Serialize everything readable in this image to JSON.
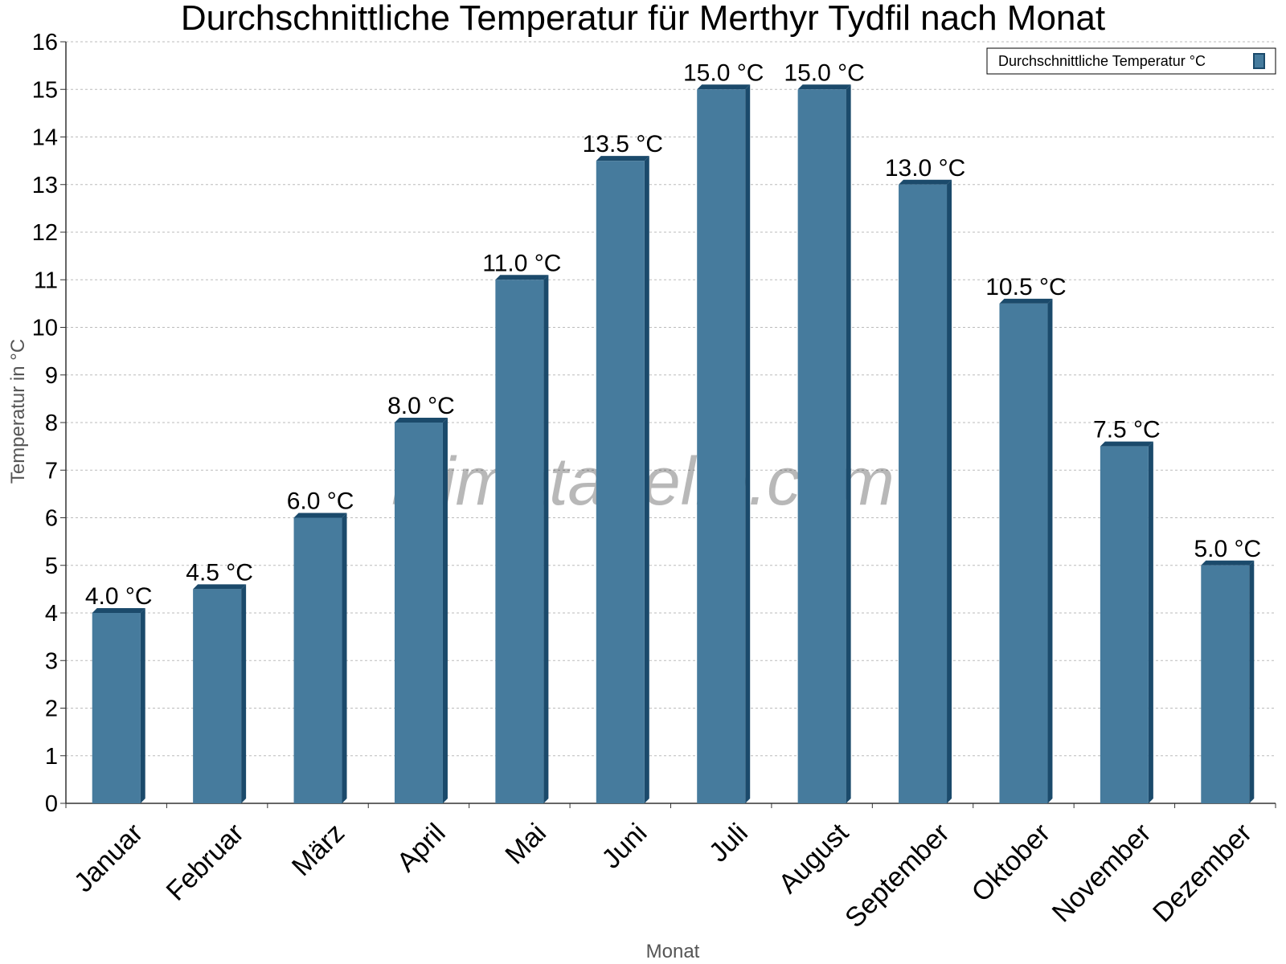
{
  "chart_data": {
    "type": "bar",
    "title": "Durchschnittliche Temperatur für Merthyr Tydfil nach Monat",
    "xlabel": "Monat",
    "ylabel": "Temperatur in °C",
    "ylim": [
      0,
      16
    ],
    "yticks": [
      0,
      1,
      2,
      3,
      4,
      5,
      6,
      7,
      8,
      9,
      10,
      11,
      12,
      13,
      14,
      15,
      16
    ],
    "grid": true,
    "legend_position": "top-right",
    "categories": [
      "Januar",
      "Februar",
      "März",
      "April",
      "Mai",
      "Juni",
      "Juli",
      "August",
      "September",
      "Oktober",
      "November",
      "Dezember"
    ],
    "series": [
      {
        "name": "Durchschnittliche Temperatur °C",
        "values": [
          4.0,
          4.5,
          6.0,
          8.0,
          11.0,
          13.5,
          15.0,
          15.0,
          13.0,
          10.5,
          7.5,
          5.0
        ],
        "labels": [
          "4.0 °C",
          "4.5 °C",
          "6.0 °C",
          "8.0 °C",
          "11.0 °C",
          "13.5 °C",
          "15.0 °C",
          "15.0 °C",
          "13.0 °C",
          "10.5 °C",
          "7.5 °C",
          "5.0 °C"
        ],
        "color": "#467b9d",
        "edge_color": "#1b4a6b"
      }
    ],
    "watermark": "klimatabelle.com"
  }
}
